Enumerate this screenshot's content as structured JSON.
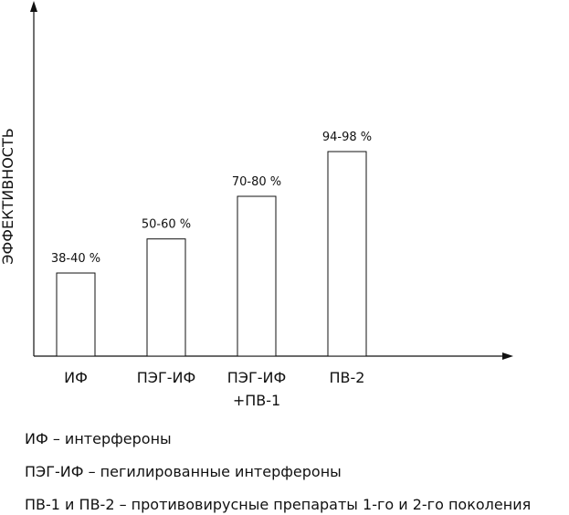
{
  "chart_data": {
    "type": "bar",
    "y_label": "ЭФФЕКТИВНОСТЬ",
    "categories": [
      "ИФ",
      "ПЭГ-ИФ",
      "ПЭГ-ИФ\n+ПВ-1",
      "ПВ-2"
    ],
    "values": [
      [
        38,
        40
      ],
      [
        50,
        60
      ],
      [
        70,
        80
      ],
      [
        94,
        98
      ]
    ],
    "value_labels": [
      "38-40 %",
      "50-60 %",
      "70-80 %",
      "94-98 %"
    ],
    "color": "#ffffff",
    "ylim": [
      0,
      165
    ],
    "notes": [
      "ИФ – интерфероны",
      "ПЭГ-ИФ – пегилированные интерфероны",
      "ПВ-1 и ПВ-2  – противовирусные препараты 1-го и 2-го поколения"
    ]
  }
}
